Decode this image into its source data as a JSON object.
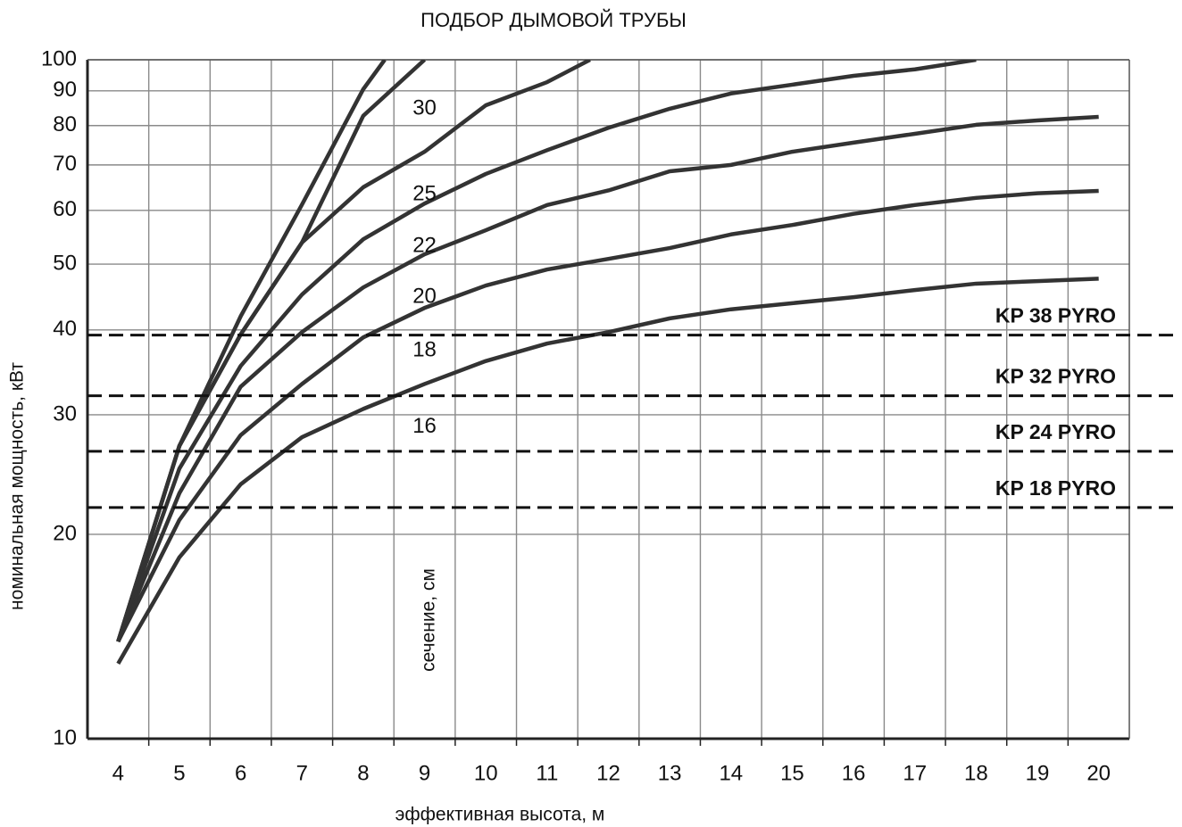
{
  "chart_data": {
    "type": "line",
    "title": "ПОДБОР ДЫМОВОЙ ТРУБЫ",
    "x_label": "эффективная высота, м",
    "y_label": "номинальная мощность, кВт",
    "annotation": "сечение, см",
    "xlim": [
      3.5,
      20.5
    ],
    "ylim": [
      10,
      100
    ],
    "y_scale": "log",
    "grid": true,
    "xticks": [
      4,
      5,
      6,
      7,
      8,
      9,
      10,
      11,
      12,
      13,
      14,
      15,
      16,
      17,
      18,
      19,
      20
    ],
    "yticks": [
      10,
      20,
      30,
      40,
      50,
      60,
      70,
      80,
      90,
      100
    ],
    "series": [
      {
        "name": "16",
        "color": "#333333",
        "x": [
          4,
          5,
          6,
          7,
          8,
          9,
          10,
          11,
          12,
          13,
          14,
          15,
          16,
          17,
          18,
          19,
          20
        ],
        "values": [
          12.9,
          18.5,
          23.7,
          27.8,
          30.6,
          33.3,
          36.0,
          38.2,
          39.7,
          41.6,
          42.9,
          43.8,
          44.7,
          45.8,
          46.8,
          47.2,
          47.6
        ]
      },
      {
        "name": "18",
        "color": "#333333",
        "x": [
          4,
          5,
          6,
          7,
          8,
          9,
          10,
          11,
          12,
          13,
          14,
          15,
          16,
          17,
          18,
          19,
          20
        ],
        "values": [
          13.9,
          21.0,
          28.0,
          33.3,
          39.0,
          43.1,
          46.5,
          49.1,
          50.9,
          52.8,
          55.3,
          57.1,
          59.3,
          61.1,
          62.6,
          63.6,
          64.1
        ]
      },
      {
        "name": "20",
        "color": "#333333",
        "x": [
          4,
          5,
          6,
          7,
          8,
          9,
          10,
          11,
          12,
          13,
          14,
          15,
          16,
          17,
          18,
          19,
          20
        ],
        "values": [
          13.9,
          23.0,
          33.0,
          39.7,
          46.2,
          51.7,
          56.1,
          61.1,
          64.2,
          68.5,
          70.0,
          73.2,
          75.5,
          77.8,
          80.2,
          81.4,
          82.4
        ]
      },
      {
        "name": "22",
        "color": "#333333",
        "x": [
          4,
          5,
          6,
          7,
          8,
          9,
          10,
          11,
          12,
          13,
          14,
          15,
          16,
          17,
          18
        ],
        "values": [
          13.9,
          25.0,
          35.4,
          45.1,
          54.4,
          61.4,
          67.9,
          73.6,
          79.4,
          84.7,
          89.2,
          91.9,
          94.7,
          96.8,
          100
        ]
      },
      {
        "name": "25",
        "color": "#333333",
        "x": [
          4,
          5,
          6,
          7,
          8,
          9,
          10,
          11,
          11.7
        ],
        "values": [
          13.9,
          27.0,
          39.4,
          53.8,
          64.9,
          73.2,
          85.7,
          92.7,
          100
        ]
      },
      {
        "name": "30",
        "color": "#333333",
        "x": [
          4,
          5,
          6,
          7,
          8,
          9
        ],
        "values": [
          13.9,
          27.0,
          39.4,
          53.8,
          82.7,
          100
        ]
      },
      {
        "color": "#333333",
        "x": [
          4,
          5,
          6,
          7,
          8,
          8.35
        ],
        "values": [
          13.9,
          27.0,
          41.9,
          61.2,
          90.5,
          100
        ]
      }
    ],
    "reference_lines": [
      {
        "label": "KP 38 PYRO",
        "value": 39.3
      },
      {
        "label": "KP 32 PYRO",
        "value": 32.0
      },
      {
        "label": "KP 24 PYRO",
        "value": 26.5
      },
      {
        "label": "KP 18 PYRO",
        "value": 21.9
      }
    ]
  }
}
